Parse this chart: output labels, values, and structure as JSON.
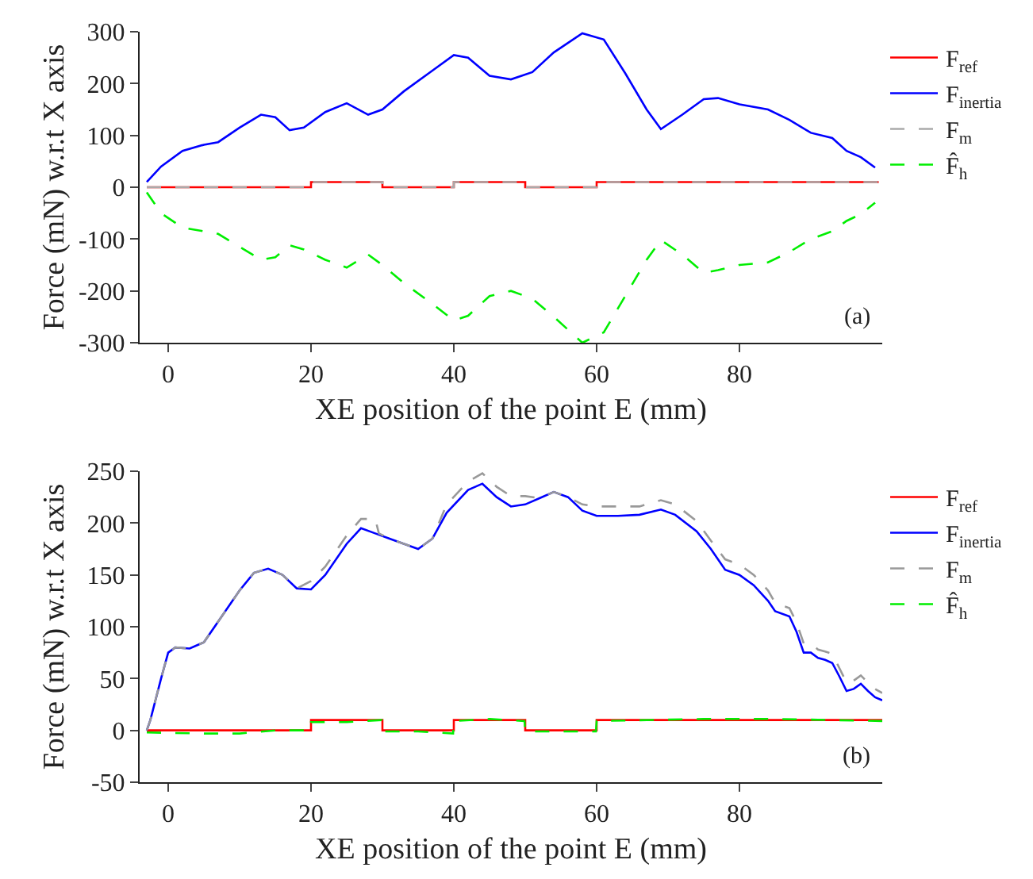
{
  "chart_data": [
    {
      "type": "line",
      "xlabel": "XE position of the point E (mm)",
      "ylabel": "Force (mN) w.r.t X axis",
      "xlim": [
        -4,
        100
      ],
      "ylim": [
        -300,
        300
      ],
      "xticks": [
        0,
        20,
        40,
        60,
        80
      ],
      "yticks": [
        -300,
        -200,
        -100,
        0,
        100,
        200,
        300
      ],
      "grid": false,
      "legend": "top right",
      "annotations": [
        "(a)"
      ],
      "series": [
        {
          "name": "F$_{ref}$",
          "type": "step",
          "color": "#ff0000",
          "line_style": "solid",
          "x": [
            -3,
            20,
            30,
            40,
            50,
            60,
            99.5
          ],
          "values": [
            0,
            10,
            0,
            10,
            0,
            10,
            10
          ]
        },
        {
          "name": "F$_{inertia}$",
          "type": "line",
          "color": "#0000ff",
          "line_style": "solid",
          "x": [
            -3,
            -1,
            2,
            5,
            7,
            10,
            13,
            15,
            17,
            19,
            22,
            25,
            28,
            30,
            33,
            37,
            40,
            42,
            45,
            48,
            51,
            54,
            58,
            61,
            64,
            67,
            69,
            72,
            75,
            77,
            80,
            84,
            87,
            90,
            93,
            95,
            97,
            99
          ],
          "values": [
            10,
            40,
            70,
            82,
            87,
            115,
            140,
            135,
            110,
            115,
            145,
            162,
            140,
            150,
            185,
            225,
            255,
            250,
            215,
            208,
            222,
            260,
            297,
            285,
            220,
            150,
            112,
            140,
            170,
            172,
            160,
            150,
            130,
            105,
            95,
            70,
            58,
            38
          ]
        },
        {
          "name": "F$_{m}$",
          "type": "step",
          "color": "#aaaaaa",
          "line_style": "dashed",
          "x": [
            -3,
            20,
            30,
            40,
            50,
            60,
            99.5
          ],
          "values": [
            0,
            10,
            0,
            10,
            0,
            10,
            10
          ]
        },
        {
          "name": "F̂$_{h}$",
          "type": "line",
          "color": "#00ee00",
          "line_style": "dashed",
          "x": [
            -3,
            -1,
            2,
            5,
            7,
            10,
            13,
            15,
            17,
            19,
            22,
            25,
            28,
            30,
            33,
            37,
            40,
            42,
            45,
            48,
            51,
            54,
            58,
            61,
            64,
            67,
            69,
            72,
            75,
            77,
            80,
            84,
            87,
            90,
            93,
            95,
            97,
            99
          ],
          "values": [
            -10,
            -50,
            -78,
            -85,
            -90,
            -115,
            -140,
            -135,
            -112,
            -120,
            -140,
            -155,
            -130,
            -150,
            -185,
            -225,
            -257,
            -248,
            -210,
            -200,
            -215,
            -250,
            -300,
            -280,
            -210,
            -140,
            -102,
            -130,
            -165,
            -160,
            -150,
            -145,
            -125,
            -100,
            -85,
            -65,
            -52,
            -30
          ]
        }
      ]
    },
    {
      "type": "line",
      "xlabel": "XE position of the point E (mm)",
      "ylabel": "Force (mN) w.r.t X axis",
      "xlim": [
        -4,
        100
      ],
      "ylim": [
        -50,
        250
      ],
      "xticks": [
        0,
        20,
        40,
        60,
        80
      ],
      "yticks": [
        -50,
        0,
        50,
        100,
        150,
        200,
        250
      ],
      "grid": false,
      "legend": "top right",
      "annotations": [
        "(b)"
      ],
      "series": [
        {
          "name": "F$_{ref}$",
          "type": "step",
          "color": "#ff0000",
          "line_style": "solid",
          "x": [
            -3,
            20,
            30,
            40,
            50,
            60,
            100
          ],
          "values": [
            0,
            10,
            0,
            10,
            0,
            10,
            10
          ]
        },
        {
          "name": "F$_{inertia}$",
          "type": "line",
          "color": "#0000ff",
          "line_style": "solid",
          "x": [
            -3,
            -2.5,
            -1,
            0,
            1,
            3,
            5,
            7,
            10,
            12,
            14,
            16,
            18,
            20,
            22,
            25,
            27,
            29,
            31,
            33,
            35,
            37,
            39,
            42,
            44,
            46,
            48,
            50,
            52,
            54,
            56,
            58,
            60,
            63,
            66,
            69,
            71,
            74,
            76,
            78,
            80,
            82,
            84,
            85,
            87,
            88,
            89,
            90,
            91,
            92,
            93,
            94,
            95,
            96,
            97,
            98,
            99,
            100
          ],
          "values": [
            0,
            10,
            50,
            75,
            80,
            79,
            85,
            105,
            135,
            152,
            156,
            150,
            137,
            136,
            150,
            180,
            195,
            190,
            185,
            180,
            175,
            185,
            210,
            232,
            238,
            225,
            216,
            218,
            224,
            230,
            225,
            212,
            207,
            207,
            208,
            213,
            208,
            192,
            175,
            155,
            150,
            140,
            125,
            115,
            110,
            95,
            75,
            75,
            70,
            68,
            65,
            52,
            38,
            40,
            45,
            38,
            32,
            29
          ]
        },
        {
          "name": "F$_{m}$",
          "type": "line",
          "color": "#999999",
          "line_style": "dashed",
          "x": [
            -3,
            -2.5,
            -1,
            0,
            1,
            3,
            5,
            7,
            10,
            12,
            14,
            16,
            18,
            20,
            22,
            25,
            27,
            29,
            29.5,
            31,
            33,
            35,
            37,
            39,
            42,
            44,
            46,
            48,
            50,
            52,
            54,
            56,
            58,
            60,
            63,
            66,
            69,
            71,
            74,
            76,
            78,
            80,
            82,
            84,
            85,
            87,
            88,
            89,
            90,
            91,
            92,
            93,
            94,
            95,
            96,
            97,
            98,
            99,
            100
          ],
          "values": [
            0,
            10,
            50,
            75,
            80,
            79,
            85,
            105,
            135,
            152,
            156,
            150,
            137,
            144,
            158,
            188,
            204,
            204,
            190,
            185,
            180,
            175,
            185,
            218,
            240,
            248,
            235,
            226,
            226,
            224,
            230,
            225,
            218,
            216,
            216,
            216,
            222,
            218,
            202,
            183,
            165,
            160,
            150,
            135,
            123,
            118,
            104,
            84,
            84,
            78,
            76,
            74,
            60,
            46,
            48,
            53,
            46,
            40,
            36
          ]
        },
        {
          "name": "F̂$_{h}$",
          "type": "line",
          "color": "#00ee00",
          "line_style": "dashed",
          "x": [
            -3,
            5,
            10,
            15,
            19.9,
            20,
            25,
            29.9,
            30,
            35,
            39.9,
            40,
            45,
            49.9,
            50,
            59.9,
            60,
            75,
            85,
            100
          ],
          "values": [
            -2,
            -3,
            -3,
            0,
            0,
            8,
            8,
            10,
            -1,
            -1,
            -3,
            9,
            11,
            9,
            -1,
            -1,
            9,
            11,
            11,
            9
          ]
        }
      ]
    }
  ]
}
